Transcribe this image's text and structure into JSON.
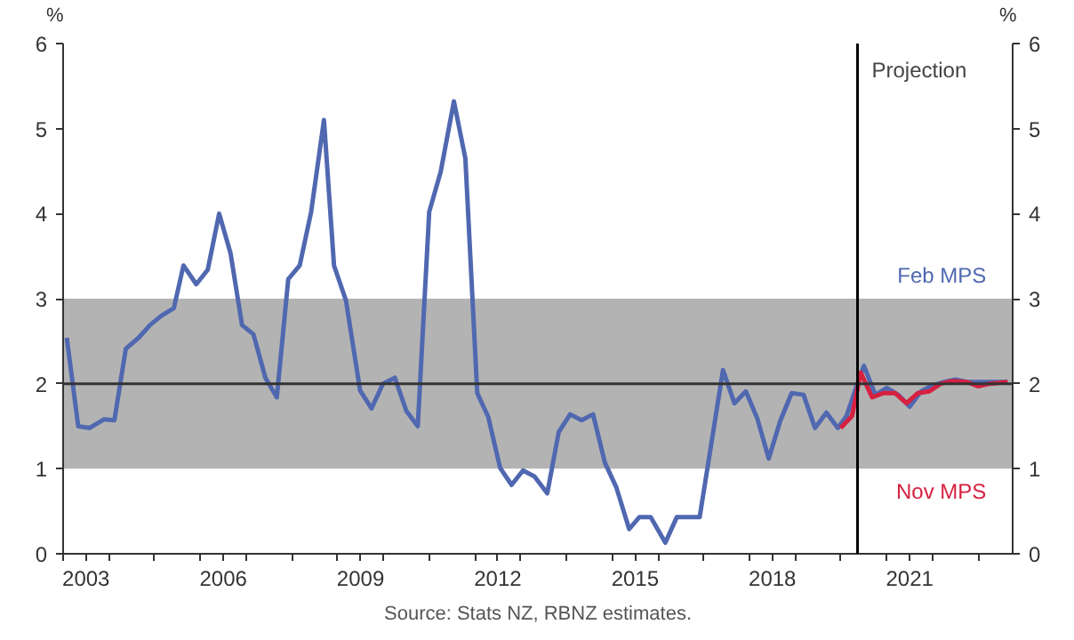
{
  "chart_data": {
    "type": "line",
    "ylabel": "%",
    "y2label": "%",
    "xlim": [
      2003.0,
      2023.75
    ],
    "ylim": [
      0,
      6
    ],
    "yticks": [
      0,
      1,
      2,
      3,
      4,
      5,
      6
    ],
    "y2lim": [
      0,
      6
    ],
    "y2ticks": [
      0,
      1,
      2,
      3,
      4,
      5,
      6
    ],
    "xticks": [
      {
        "value": 2003,
        "label": null
      },
      {
        "value": 2003.5,
        "label": "2003"
      },
      {
        "value": 2004,
        "label": null
      },
      {
        "value": 2005,
        "label": null
      },
      {
        "value": 2006,
        "label": null
      },
      {
        "value": 2006.5,
        "label": "2006"
      },
      {
        "value": 2007,
        "label": null
      },
      {
        "value": 2008,
        "label": null
      },
      {
        "value": 2009,
        "label": null
      },
      {
        "value": 2009.5,
        "label": "2009"
      },
      {
        "value": 2010,
        "label": null
      },
      {
        "value": 2011,
        "label": null
      },
      {
        "value": 2012,
        "label": null
      },
      {
        "value": 2012.5,
        "label": "2012"
      },
      {
        "value": 2013,
        "label": null
      },
      {
        "value": 2014,
        "label": null
      },
      {
        "value": 2015,
        "label": null
      },
      {
        "value": 2015.5,
        "label": "2015"
      },
      {
        "value": 2016,
        "label": null
      },
      {
        "value": 2017,
        "label": null
      },
      {
        "value": 2018,
        "label": null
      },
      {
        "value": 2018.5,
        "label": "2018"
      },
      {
        "value": 2019,
        "label": null
      },
      {
        "value": 2020,
        "label": null
      },
      {
        "value": 2021,
        "label": null
      },
      {
        "value": 2021.5,
        "label": "2021"
      },
      {
        "value": 2022,
        "label": null
      },
      {
        "value": 2023,
        "label": null
      }
    ],
    "grid": false,
    "marker": "none",
    "line_style": "solid",
    "series": [
      {
        "name": "Feb MPS",
        "color": "#5068b0",
        "x": [
          2003.08,
          2003.33,
          2003.58,
          2003.89,
          2004.12,
          2004.37,
          2004.65,
          2004.9,
          2005.15,
          2005.42,
          2005.63,
          2005.91,
          2006.16,
          2006.41,
          2006.66,
          2006.91,
          2007.16,
          2007.42,
          2007.67,
          2007.92,
          2008.17,
          2008.42,
          2008.7,
          2008.92,
          2009.18,
          2009.49,
          2009.74,
          2009.99,
          2010.25,
          2010.5,
          2010.75,
          2011.0,
          2011.25,
          2011.54,
          2011.79,
          2012.05,
          2012.29,
          2012.55,
          2012.8,
          2013.05,
          2013.3,
          2013.58,
          2013.83,
          2014.08,
          2014.33,
          2014.58,
          2014.84,
          2015.09,
          2015.37,
          2015.59,
          2015.84,
          2016.16,
          2016.41,
          2016.91,
          2017.42,
          2017.67,
          2017.92,
          2018.17,
          2018.42,
          2018.67,
          2018.92,
          2019.18,
          2019.43,
          2019.68,
          2019.93,
          2020.12,
          2020.37,
          2020.5,
          2020.75,
          2021.0,
          2021.25,
          2021.5,
          2021.75,
          2022.0,
          2022.25,
          2022.5,
          2022.75,
          2023.0,
          2023.33,
          2023.64
        ],
        "values": [
          2.54,
          1.5,
          1.48,
          1.58,
          1.57,
          2.41,
          2.54,
          2.69,
          2.8,
          2.89,
          3.39,
          3.17,
          3.34,
          4.0,
          3.53,
          2.69,
          2.58,
          2.07,
          1.84,
          3.23,
          3.39,
          4.02,
          5.1,
          3.39,
          2.98,
          1.92,
          1.71,
          2.0,
          2.07,
          1.68,
          1.5,
          4.02,
          4.49,
          5.32,
          4.65,
          1.89,
          1.61,
          1.01,
          0.81,
          0.98,
          0.91,
          0.71,
          1.43,
          1.64,
          1.57,
          1.64,
          1.07,
          0.78,
          0.29,
          0.43,
          0.43,
          0.13,
          0.43,
          0.43,
          2.16,
          1.77,
          1.91,
          1.59,
          1.12,
          1.56,
          1.89,
          1.87,
          1.48,
          1.66,
          1.48,
          1.62,
          2.02,
          2.21,
          1.87,
          1.95,
          1.87,
          1.73,
          1.91,
          1.98,
          2.02,
          2.05,
          2.02,
          2.02,
          2.02,
          2.02
        ]
      },
      {
        "name": "Nov MPS",
        "color": "#d62040",
        "x": [
          2019.99,
          2020.24,
          2020.43,
          2020.68,
          2020.93,
          2021.18,
          2021.43,
          2021.68,
          2021.93,
          2022.18,
          2022.43,
          2022.75,
          2023.0,
          2023.25,
          2023.64
        ],
        "values": [
          1.48,
          1.62,
          2.13,
          1.84,
          1.89,
          1.89,
          1.77,
          1.89,
          1.91,
          2.0,
          2.03,
          2.02,
          1.97,
          2.0,
          2.02
        ]
      }
    ],
    "bands": [
      {
        "axis": "y",
        "from": 1,
        "to": 3,
        "color": "#b3b3b3"
      }
    ],
    "ref_lines": [
      {
        "axis": "y",
        "value": 2,
        "color": "#333333"
      },
      {
        "axis": "x",
        "value": 2020.36,
        "label": "Projection",
        "color": "#000000"
      }
    ],
    "annotations": [
      "Source: Stats NZ, RBNZ estimates."
    ]
  }
}
